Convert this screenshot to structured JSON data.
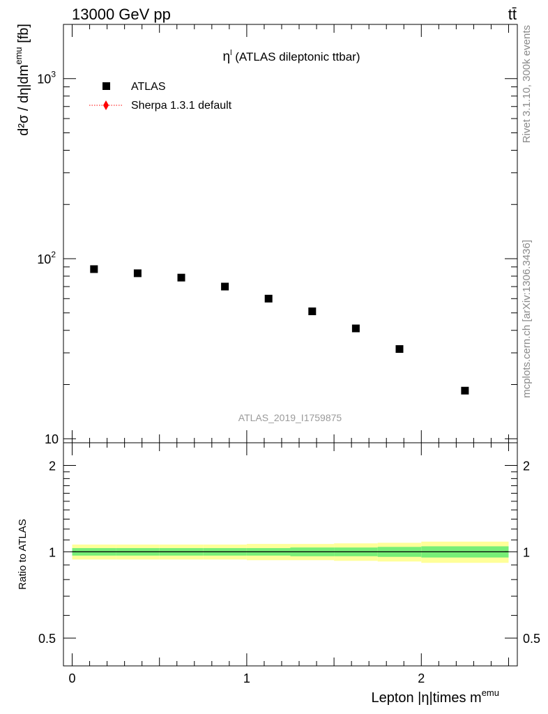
{
  "header": {
    "energy_label": "13000 GeV pp",
    "process_label": "tt̄"
  },
  "side_labels": {
    "rivet": "Rivet 3.1.10,  300k events",
    "mcplots": "mcplots.cern.ch [arXiv:1306.3436]"
  },
  "chart_data": [
    {
      "type": "scatter",
      "title_symbol": "η",
      "title_sup": "l",
      "title_rest": " (ATLAS dileptonic ttbar)",
      "analysis_label": "ATLAS_2019_I1759875",
      "ylabel_main": "d²σ / dη|dm",
      "ylabel_sup": "emu",
      "ylabel_unit": " [fb]",
      "yscale": "log",
      "ylim": [
        9.5,
        2000
      ],
      "xlim": [
        -0.05,
        2.55
      ],
      "y_ticks": [
        {
          "value": 10,
          "base": "10",
          "exp": ""
        },
        {
          "value": 100,
          "base": "10",
          "exp": "2"
        },
        {
          "value": 1000,
          "base": "10",
          "exp": "3"
        }
      ],
      "legend_position": "top-left",
      "series": [
        {
          "name": "ATLAS",
          "marker": "square",
          "color": "#000000",
          "x": [
            0.125,
            0.375,
            0.625,
            0.875,
            1.125,
            1.375,
            1.625,
            1.875,
            2.25
          ],
          "y": [
            87.5,
            83.0,
            78.5,
            70.0,
            60.0,
            51.0,
            41.0,
            31.5,
            18.5
          ]
        },
        {
          "name": "Sherpa 1.3.1 default",
          "marker": "diamond",
          "color": "#ff0000",
          "line_style": "dotted",
          "x": [],
          "y": []
        }
      ]
    },
    {
      "type": "band",
      "ylabel": "Ratio to ATLAS",
      "xlabel_main": "Lepton |η|times m",
      "xlabel_sup": "emu",
      "yscale": "log",
      "ylim": [
        0.4,
        2.4
      ],
      "y_ticks": [
        {
          "value": 0.5,
          "label": "0.5"
        },
        {
          "value": 1,
          "label": "1"
        },
        {
          "value": 2,
          "label": "2"
        }
      ],
      "x_ticks": [
        {
          "value": 0,
          "label": "0"
        },
        {
          "value": 1,
          "label": "1"
        },
        {
          "value": 2,
          "label": "2"
        }
      ],
      "reference_line": 1,
      "bins": [
        {
          "lo": 0.0,
          "hi": 0.25,
          "stat": 0.03,
          "total": 0.06
        },
        {
          "lo": 0.25,
          "hi": 0.5,
          "stat": 0.03,
          "total": 0.06
        },
        {
          "lo": 0.5,
          "hi": 0.75,
          "stat": 0.03,
          "total": 0.06
        },
        {
          "lo": 0.75,
          "hi": 1.0,
          "stat": 0.03,
          "total": 0.06
        },
        {
          "lo": 1.0,
          "hi": 1.25,
          "stat": 0.03,
          "total": 0.065
        },
        {
          "lo": 1.25,
          "hi": 1.5,
          "stat": 0.035,
          "total": 0.065
        },
        {
          "lo": 1.5,
          "hi": 1.75,
          "stat": 0.035,
          "total": 0.07
        },
        {
          "lo": 1.75,
          "hi": 2.0,
          "stat": 0.04,
          "total": 0.075
        },
        {
          "lo": 2.0,
          "hi": 2.5,
          "stat": 0.045,
          "total": 0.085
        }
      ],
      "stat_color": "#77ee77",
      "total_color": "#ffff99"
    }
  ]
}
